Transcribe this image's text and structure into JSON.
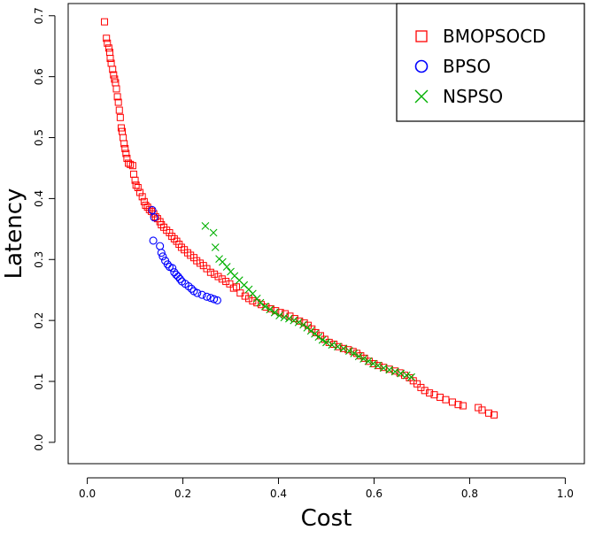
{
  "chart_data": {
    "type": "scatter",
    "xlabel": "Cost",
    "ylabel": "Latency",
    "xlim": [
      -0.04,
      1.04
    ],
    "ylim": [
      -0.035,
      0.72
    ],
    "xticks": [
      "0.0",
      "0.2",
      "0.4",
      "0.6",
      "0.8",
      "1.0"
    ],
    "yticks": [
      "0.0",
      "0.1",
      "0.2",
      "0.3",
      "0.4",
      "0.5",
      "0.6",
      "0.7"
    ],
    "grid": false,
    "legend_position": "top-right",
    "series": [
      {
        "name": "BMOPSOCD",
        "marker": "square",
        "color": "#ff0000",
        "points": [
          [
            0.036,
            0.69
          ],
          [
            0.04,
            0.663
          ],
          [
            0.042,
            0.655
          ],
          [
            0.045,
            0.647
          ],
          [
            0.047,
            0.64
          ],
          [
            0.048,
            0.63
          ],
          [
            0.05,
            0.622
          ],
          [
            0.053,
            0.612
          ],
          [
            0.055,
            0.603
          ],
          [
            0.057,
            0.596
          ],
          [
            0.059,
            0.59
          ],
          [
            0.061,
            0.58
          ],
          [
            0.063,
            0.567
          ],
          [
            0.065,
            0.558
          ],
          [
            0.067,
            0.545
          ],
          [
            0.069,
            0.533
          ],
          [
            0.071,
            0.516
          ],
          [
            0.073,
            0.51
          ],
          [
            0.075,
            0.5
          ],
          [
            0.077,
            0.49
          ],
          [
            0.079,
            0.482
          ],
          [
            0.081,
            0.474
          ],
          [
            0.083,
            0.466
          ],
          [
            0.086,
            0.458
          ],
          [
            0.09,
            0.456
          ],
          [
            0.095,
            0.454
          ],
          [
            0.097,
            0.44
          ],
          [
            0.1,
            0.43
          ],
          [
            0.102,
            0.422
          ],
          [
            0.106,
            0.418
          ],
          [
            0.11,
            0.41
          ],
          [
            0.115,
            0.403
          ],
          [
            0.119,
            0.395
          ],
          [
            0.122,
            0.389
          ],
          [
            0.126,
            0.386
          ],
          [
            0.13,
            0.382
          ],
          [
            0.134,
            0.379
          ],
          [
            0.139,
            0.375
          ],
          [
            0.143,
            0.37
          ],
          [
            0.147,
            0.367
          ],
          [
            0.152,
            0.362
          ],
          [
            0.155,
            0.357
          ],
          [
            0.16,
            0.353
          ],
          [
            0.166,
            0.348
          ],
          [
            0.172,
            0.344
          ],
          [
            0.177,
            0.338
          ],
          [
            0.182,
            0.334
          ],
          [
            0.187,
            0.33
          ],
          [
            0.192,
            0.325
          ],
          [
            0.197,
            0.32
          ],
          [
            0.203,
            0.316
          ],
          [
            0.21,
            0.311
          ],
          [
            0.216,
            0.307
          ],
          [
            0.223,
            0.303
          ],
          [
            0.229,
            0.298
          ],
          [
            0.236,
            0.294
          ],
          [
            0.243,
            0.29
          ],
          [
            0.25,
            0.285
          ],
          [
            0.258,
            0.279
          ],
          [
            0.266,
            0.276
          ],
          [
            0.274,
            0.272
          ],
          [
            0.282,
            0.268
          ],
          [
            0.29,
            0.264
          ],
          [
            0.298,
            0.26
          ],
          [
            0.306,
            0.253
          ],
          [
            0.312,
            0.255
          ],
          [
            0.32,
            0.245
          ],
          [
            0.33,
            0.24
          ],
          [
            0.338,
            0.236
          ],
          [
            0.346,
            0.232
          ],
          [
            0.355,
            0.229
          ],
          [
            0.364,
            0.226
          ],
          [
            0.374,
            0.222
          ],
          [
            0.384,
            0.219
          ],
          [
            0.394,
            0.216
          ],
          [
            0.404,
            0.213
          ],
          [
            0.414,
            0.211
          ],
          [
            0.424,
            0.207
          ],
          [
            0.434,
            0.203
          ],
          [
            0.444,
            0.199
          ],
          [
            0.454,
            0.196
          ],
          [
            0.462,
            0.192
          ],
          [
            0.47,
            0.186
          ],
          [
            0.478,
            0.18
          ],
          [
            0.488,
            0.175
          ],
          [
            0.497,
            0.169
          ],
          [
            0.506,
            0.164
          ],
          [
            0.516,
            0.161
          ],
          [
            0.526,
            0.157
          ],
          [
            0.536,
            0.154
          ],
          [
            0.546,
            0.152
          ],
          [
            0.556,
            0.149
          ],
          [
            0.564,
            0.146
          ],
          [
            0.572,
            0.142
          ],
          [
            0.58,
            0.138
          ],
          [
            0.59,
            0.133
          ],
          [
            0.6,
            0.129
          ],
          [
            0.61,
            0.126
          ],
          [
            0.62,
            0.123
          ],
          [
            0.632,
            0.12
          ],
          [
            0.644,
            0.117
          ],
          [
            0.654,
            0.114
          ],
          [
            0.664,
            0.11
          ],
          [
            0.674,
            0.106
          ],
          [
            0.682,
            0.101
          ],
          [
            0.69,
            0.096
          ],
          [
            0.698,
            0.09
          ],
          [
            0.706,
            0.085
          ],
          [
            0.716,
            0.081
          ],
          [
            0.726,
            0.078
          ],
          [
            0.738,
            0.074
          ],
          [
            0.75,
            0.07
          ],
          [
            0.764,
            0.066
          ],
          [
            0.776,
            0.062
          ],
          [
            0.786,
            0.06
          ],
          [
            0.818,
            0.057
          ],
          [
            0.826,
            0.053
          ],
          [
            0.84,
            0.048
          ],
          [
            0.851,
            0.045
          ]
        ]
      },
      {
        "name": "BPSO",
        "marker": "circle",
        "color": "#0000ff",
        "points": [
          [
            0.136,
            0.381
          ],
          [
            0.14,
            0.369
          ],
          [
            0.138,
            0.331
          ],
          [
            0.152,
            0.322
          ],
          [
            0.155,
            0.311
          ],
          [
            0.158,
            0.305
          ],
          [
            0.163,
            0.298
          ],
          [
            0.168,
            0.292
          ],
          [
            0.172,
            0.288
          ],
          [
            0.178,
            0.286
          ],
          [
            0.182,
            0.279
          ],
          [
            0.186,
            0.275
          ],
          [
            0.19,
            0.272
          ],
          [
            0.194,
            0.268
          ],
          [
            0.198,
            0.264
          ],
          [
            0.205,
            0.26
          ],
          [
            0.212,
            0.256
          ],
          [
            0.218,
            0.252
          ],
          [
            0.223,
            0.248
          ],
          [
            0.23,
            0.245
          ],
          [
            0.24,
            0.242
          ],
          [
            0.25,
            0.239
          ],
          [
            0.258,
            0.237
          ],
          [
            0.265,
            0.235
          ],
          [
            0.272,
            0.233
          ]
        ]
      },
      {
        "name": "NSPSO",
        "marker": "x",
        "color": "#00b000",
        "points": [
          [
            0.247,
            0.355
          ],
          [
            0.264,
            0.344
          ],
          [
            0.268,
            0.32
          ],
          [
            0.276,
            0.301
          ],
          [
            0.283,
            0.296
          ],
          [
            0.292,
            0.288
          ],
          [
            0.3,
            0.28
          ],
          [
            0.308,
            0.273
          ],
          [
            0.318,
            0.266
          ],
          [
            0.328,
            0.258
          ],
          [
            0.338,
            0.251
          ],
          [
            0.346,
            0.244
          ],
          [
            0.355,
            0.236
          ],
          [
            0.362,
            0.229
          ],
          [
            0.372,
            0.223
          ],
          [
            0.382,
            0.218
          ],
          [
            0.392,
            0.213
          ],
          [
            0.402,
            0.208
          ],
          [
            0.412,
            0.205
          ],
          [
            0.422,
            0.203
          ],
          [
            0.432,
            0.2
          ],
          [
            0.442,
            0.197
          ],
          [
            0.452,
            0.193
          ],
          [
            0.46,
            0.188
          ],
          [
            0.468,
            0.183
          ],
          [
            0.476,
            0.178
          ],
          [
            0.484,
            0.173
          ],
          [
            0.492,
            0.168
          ],
          [
            0.5,
            0.164
          ],
          [
            0.512,
            0.16
          ],
          [
            0.524,
            0.157
          ],
          [
            0.536,
            0.154
          ],
          [
            0.548,
            0.15
          ],
          [
            0.558,
            0.146
          ],
          [
            0.568,
            0.141
          ],
          [
            0.578,
            0.137
          ],
          [
            0.588,
            0.133
          ],
          [
            0.598,
            0.129
          ],
          [
            0.608,
            0.126
          ],
          [
            0.62,
            0.122
          ],
          [
            0.632,
            0.119
          ],
          [
            0.644,
            0.116
          ],
          [
            0.656,
            0.113
          ],
          [
            0.668,
            0.11
          ],
          [
            0.678,
            0.107
          ]
        ]
      }
    ]
  }
}
